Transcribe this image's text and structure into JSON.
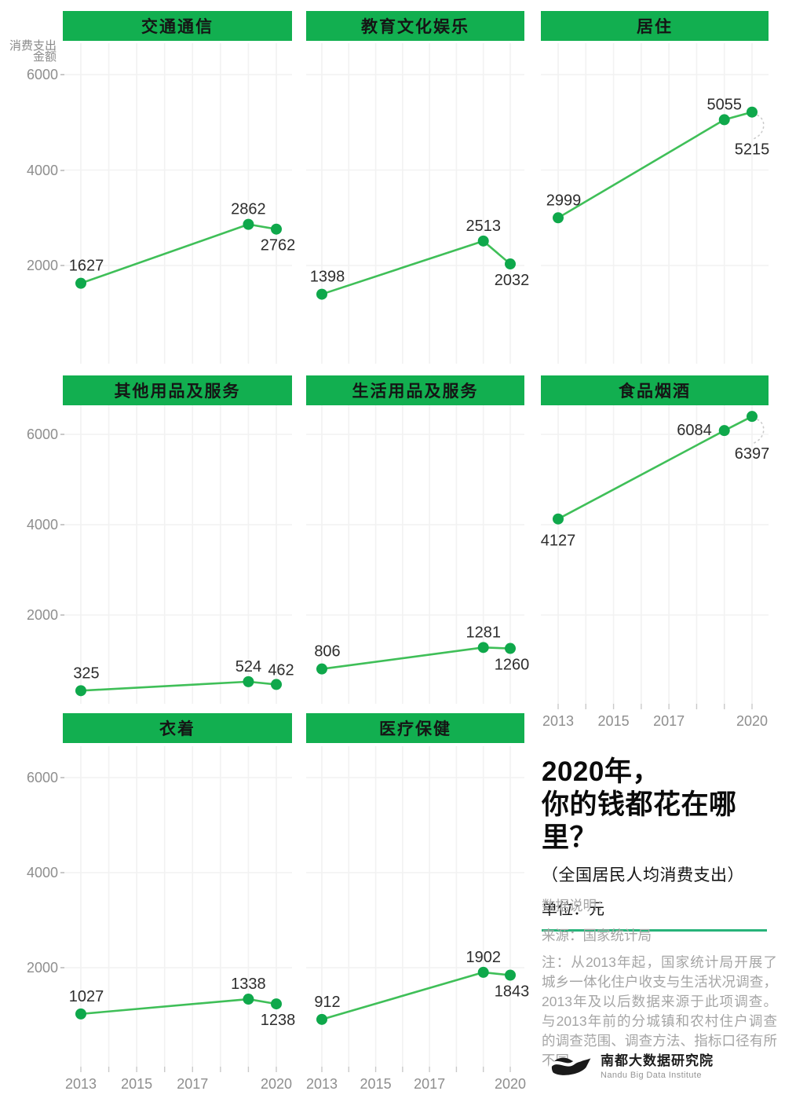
{
  "colors": {
    "header_green": "#12AF50",
    "line_green": "#3FBF58",
    "dot_green": "#0FA84B",
    "divider_teal": "#27B37A",
    "grid": "#F2F2F2",
    "tick": "#C9C9C9",
    "axis_text": "#8E8E8E",
    "value_text": "#2D2D2D",
    "callout_dotted": "#CBCBCB"
  },
  "y_axis": {
    "title_lines": [
      "消费支出",
      "金额"
    ],
    "tick_labels": [
      "6000",
      "4000",
      "2000"
    ]
  },
  "chart_data": {
    "type": "line",
    "title": "2020年，你的钱都花在哪里？",
    "subtitle": "（全国居民人均消费支出）",
    "unit": "元",
    "x": [
      2013,
      2019,
      2020
    ],
    "xlim": [
      2013,
      2020
    ],
    "ylim": [
      0,
      6600
    ],
    "x_tick_labels": [
      "2013",
      "2015",
      "2017",
      "2020"
    ],
    "y_ticks": [
      2000,
      4000,
      6000
    ],
    "grid": true,
    "legend": "none",
    "layout": "small-multiples 3x3, last cell is title/notes",
    "series": [
      {
        "name": "交通通信",
        "values": [
          1627,
          2862,
          2762
        ],
        "labels": {
          "first": "above",
          "mid": "above",
          "last": "below"
        },
        "x_axis": false
      },
      {
        "name": "教育文化娱乐",
        "values": [
          1398,
          2513,
          2032
        ],
        "labels": {
          "first": "above",
          "mid": "above",
          "last": "below"
        },
        "x_axis": false
      },
      {
        "name": "居住",
        "values": [
          2999,
          5055,
          5215
        ],
        "labels": {
          "first": "above",
          "mid": "above",
          "last": "callout"
        },
        "x_axis": false
      },
      {
        "name": "其他用品及服务",
        "values": [
          325,
          524,
          462
        ],
        "labels": {
          "first": "above",
          "mid": "above",
          "last": "above"
        },
        "x_axis": false
      },
      {
        "name": "生活用品及服务",
        "values": [
          806,
          1281,
          1260
        ],
        "labels": {
          "first": "above",
          "mid": "above",
          "last": "below"
        },
        "x_axis": false
      },
      {
        "name": "食品烟酒",
        "values": [
          4127,
          6084,
          6397
        ],
        "labels": {
          "first": "below",
          "mid": "left",
          "last": "callout"
        },
        "x_axis": true
      },
      {
        "name": "衣着",
        "values": [
          1027,
          1338,
          1238
        ],
        "labels": {
          "first": "above",
          "mid": "above",
          "last": "below"
        },
        "x_axis": true
      },
      {
        "name": "医疗保健",
        "values": [
          912,
          1902,
          1843
        ],
        "labels": {
          "first": "above",
          "mid": "above",
          "last": "below"
        },
        "x_axis": true
      }
    ]
  },
  "info": {
    "title_line1": "2020年，",
    "title_line2": "你的钱都花在哪里？",
    "subtitle": "（全国居民人均消费支出）",
    "unit_label": "单位：元"
  },
  "notes": {
    "heading": "数据说明：",
    "source": "来源：国家统计局",
    "body": "注：从2013年起，国家统计局开展了城乡一体化住户收支与生活状况调查，2013年及以后数据来源于此项调查。与2013年前的分城镇和农村住户调查的调查范围、调查方法、指标口径有所不同。"
  },
  "logo": {
    "name_cn": "南都大数据研究院",
    "name_en": "Nandu Big Data Institute"
  }
}
